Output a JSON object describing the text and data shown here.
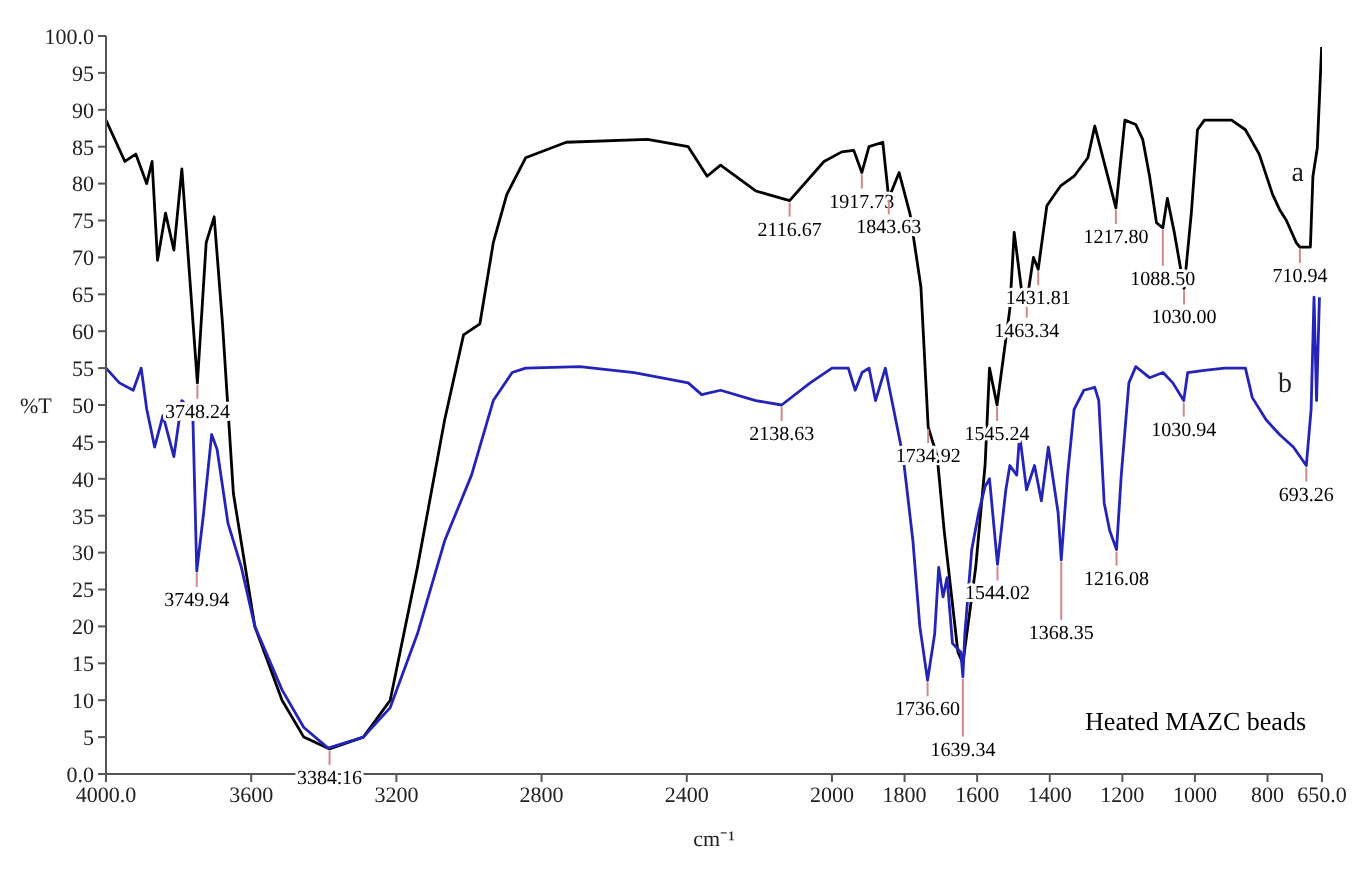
{
  "chart_data": {
    "type": "line",
    "xlabel": "cm⁻¹",
    "ylabel": "%T",
    "xlim": [
      4000,
      650
    ],
    "ylim": [
      0,
      100
    ],
    "xticks": [
      {
        "value": 4000,
        "label": "4000.0"
      },
      3600,
      3200,
      2800,
      2400,
      2000,
      1800,
      1600,
      1400,
      1200,
      1000,
      800,
      {
        "value": 650,
        "label": "650.0"
      }
    ],
    "yticks": [
      {
        "value": 0,
        "label": "0.0"
      },
      5,
      10,
      15,
      20,
      25,
      30,
      35,
      40,
      45,
      50,
      55,
      60,
      65,
      70,
      75,
      80,
      85,
      90,
      95,
      {
        "value": 100,
        "label": "100.0"
      }
    ],
    "marker": "none",
    "line_style": "solid",
    "series": [
      {
        "name": "a",
        "color": "#000000",
        "x": [
          4000,
          3948,
          3918,
          3888,
          3873,
          3858,
          3836,
          3813,
          3791,
          3748.24,
          3724,
          3702,
          3679,
          3649,
          3590,
          3515,
          3455,
          3384.16,
          3291,
          3217,
          3142,
          3067,
          3015,
          2970,
          2933,
          2896,
          2844,
          2732,
          2508,
          2396,
          2344,
          2307,
          2210,
          2116.67,
          2022,
          1973,
          1940,
          1917.73,
          1898,
          1860,
          1843.63,
          1815,
          1785,
          1755,
          1734.92,
          1710,
          1691,
          1653,
          1639.34,
          1604,
          1578,
          1566,
          1545.24,
          1510,
          1498,
          1475,
          1463.34,
          1445,
          1431.81,
          1408,
          1370,
          1333,
          1295,
          1276,
          1217.8,
          1193,
          1163,
          1144,
          1125,
          1106,
          1088.5,
          1076,
          1057,
          1030,
          1010,
          993,
          974,
          936,
          899,
          861,
          823,
          786,
          767,
          748,
          721,
          710.94,
          682,
          675,
          663,
          651
        ],
        "values": [
          88.6,
          83,
          84,
          80,
          83,
          69.6,
          76,
          71,
          82,
          53,
          72,
          75.5,
          61,
          38,
          20,
          10,
          5,
          3.4,
          5,
          10,
          28,
          48,
          59.5,
          61,
          72,
          78.5,
          83.5,
          85.6,
          86,
          85,
          81,
          82.5,
          79,
          77.7,
          83,
          84.3,
          84.5,
          81.5,
          85,
          85.6,
          78,
          81.5,
          75.9,
          66,
          47,
          43,
          33,
          16.5,
          15,
          28,
          42,
          55,
          50,
          63,
          73.4,
          64.5,
          64,
          70,
          68.4,
          77,
          79.7,
          81,
          83.5,
          87.8,
          76.7,
          88.6,
          88,
          86,
          81,
          74.7,
          74,
          78,
          73.4,
          65.8,
          76,
          87.3,
          88.6,
          88.6,
          88.6,
          87.3,
          84,
          78.5,
          76.5,
          75,
          72,
          71.4,
          71.4,
          81,
          84.8,
          98.5
        ]
      },
      {
        "name": "b",
        "color": "#2424b8",
        "x": [
          4000,
          3963,
          3925,
          3903,
          3888,
          3866,
          3843,
          3813,
          3791,
          3761,
          3749.94,
          3731,
          3709,
          3694,
          3664,
          3627,
          3590,
          3515,
          3455,
          3388,
          3291,
          3217,
          3142,
          3067,
          2993,
          2933,
          2881,
          2844,
          2695,
          2545,
          2396,
          2359,
          2307,
          2210,
          2138.63,
          2060,
          2000,
          1955,
          1936,
          1917,
          1898,
          1880,
          1853,
          1830,
          1804,
          1777,
          1758,
          1736.6,
          1717,
          1706,
          1694,
          1683,
          1668,
          1645,
          1639.34,
          1634,
          1615,
          1596,
          1578,
          1566,
          1544.02,
          1521,
          1510,
          1491,
          1483,
          1464,
          1442,
          1423,
          1404,
          1377,
          1368.35,
          1351,
          1333,
          1306,
          1276,
          1265,
          1250,
          1235,
          1216.08,
          1203,
          1182,
          1163,
          1125,
          1088,
          1061,
          1030.94,
          1020,
          974,
          918,
          861,
          842,
          804,
          767,
          729,
          693.26,
          680,
          672,
          665,
          657
        ],
        "values": [
          55,
          53,
          52,
          55,
          49.5,
          44.3,
          48.6,
          43,
          50.6,
          49,
          27.5,
          35.4,
          46,
          44,
          34,
          28,
          20,
          11.4,
          6.3,
          3.5,
          5,
          9,
          19,
          31.6,
          40.5,
          50.6,
          54.4,
          55,
          55.2,
          54.4,
          53,
          51.4,
          52,
          50.6,
          50,
          53,
          55,
          55,
          52,
          54.4,
          55,
          50.6,
          55,
          49.4,
          43,
          31.6,
          20,
          12.7,
          19,
          28,
          24,
          26.6,
          17.7,
          16.5,
          13.2,
          19,
          30.4,
          35.4,
          39,
          40,
          28.4,
          38.5,
          41.8,
          40.5,
          46,
          38.5,
          41.8,
          37,
          44.3,
          35.4,
          29,
          40.5,
          49.4,
          52,
          52.4,
          50.6,
          36.7,
          33,
          30.4,
          40.5,
          53,
          55.2,
          53.7,
          54.4,
          53,
          50.6,
          54.4,
          54.7,
          55,
          55,
          51,
          48,
          46,
          44.3,
          41.8,
          49.4,
          64.6,
          50.6,
          64.6
        ]
      }
    ],
    "annotations": [
      {
        "text": "3748.24",
        "x": 3748.24,
        "y": 53
      },
      {
        "text": "3749.94",
        "x": 3749.94,
        "y": 27.5
      },
      {
        "text": "3384.16",
        "x": 3384.16,
        "y": 3.4
      },
      {
        "text": "2116.67",
        "x": 2116.67,
        "y": 77.7
      },
      {
        "text": "2138.63",
        "x": 2138.63,
        "y": 50
      },
      {
        "text": "1917.73",
        "x": 1917.73,
        "y": 81.5
      },
      {
        "text": "1843.63",
        "x": 1843.63,
        "y": 78
      },
      {
        "text": "1734.92",
        "x": 1734.92,
        "y": 47
      },
      {
        "text": "1736.60",
        "x": 1736.6,
        "y": 12.7
      },
      {
        "text": "1639.34",
        "x": 1639.34,
        "y": 13.2
      },
      {
        "text": "1545.24",
        "x": 1545.24,
        "y": 50
      },
      {
        "text": "1544.02",
        "x": 1544.02,
        "y": 28.4
      },
      {
        "text": "1463.34",
        "x": 1463.34,
        "y": 64
      },
      {
        "text": "1431.81",
        "x": 1431.81,
        "y": 68.4
      },
      {
        "text": "1368.35",
        "x": 1368.35,
        "y": 29
      },
      {
        "text": "1217.80",
        "x": 1217.8,
        "y": 76.7
      },
      {
        "text": "1216.08",
        "x": 1216.08,
        "y": 30.4
      },
      {
        "text": "1088.50",
        "x": 1088.5,
        "y": 74
      },
      {
        "text": "1030.00",
        "x": 1030,
        "y": 65.8
      },
      {
        "text": "1030.94",
        "x": 1030.94,
        "y": 50.6
      },
      {
        "text": "710.94",
        "x": 710.94,
        "y": 71.4
      },
      {
        "text": "693.26",
        "x": 693.26,
        "y": 41.8
      },
      "Heated MAZC beads"
    ]
  }
}
